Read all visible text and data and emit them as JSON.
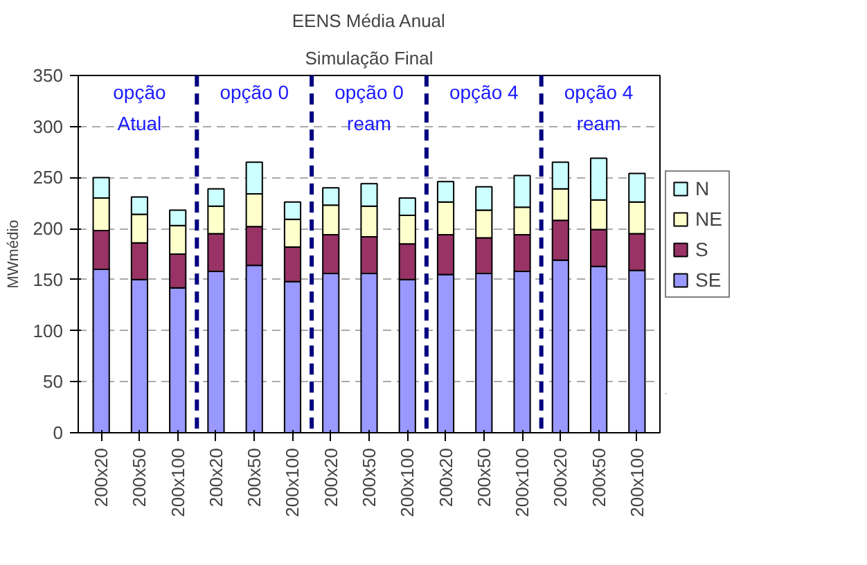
{
  "chart_data": {
    "type": "bar",
    "stacked": true,
    "title": "EENS Média Anual",
    "subtitle": "Simulação Final",
    "ylabel": "MWmédio",
    "categories": [
      "200x20",
      "200x50",
      "200x100",
      "200x20",
      "200x50",
      "200x100",
      "200x20",
      "200x50",
      "200x100",
      "200x20",
      "200x50",
      "200x100",
      "200x20",
      "200x50",
      "200x100"
    ],
    "series": [
      {
        "name": "SE",
        "color": "#9999ff",
        "values": [
          160,
          150,
          142,
          158,
          164,
          148,
          156,
          156,
          150,
          155,
          156,
          158,
          169,
          163,
          159
        ]
      },
      {
        "name": "S",
        "color": "#993366",
        "values": [
          38,
          36,
          33,
          37,
          38,
          34,
          38,
          36,
          35,
          39,
          35,
          36,
          39,
          36,
          36
        ]
      },
      {
        "name": "NE",
        "color": "#ffffcc",
        "values": [
          32,
          28,
          28,
          27,
          32,
          27,
          29,
          30,
          28,
          32,
          27,
          27,
          31,
          29,
          31
        ]
      },
      {
        "name": "N",
        "color": "#ccffff",
        "values": [
          20,
          17,
          15,
          17,
          31,
          17,
          17,
          22,
          17,
          20,
          23,
          31,
          26,
          41,
          28
        ]
      }
    ],
    "ylim": [
      0,
      350
    ],
    "yticks": [
      0,
      50,
      100,
      150,
      200,
      250,
      300,
      350
    ],
    "grid": "y",
    "legend": "right",
    "annotations": [
      "opção\nAtual",
      "opção 0",
      "opção 0\nream",
      "opção 4",
      "opção 4\nream"
    ]
  }
}
